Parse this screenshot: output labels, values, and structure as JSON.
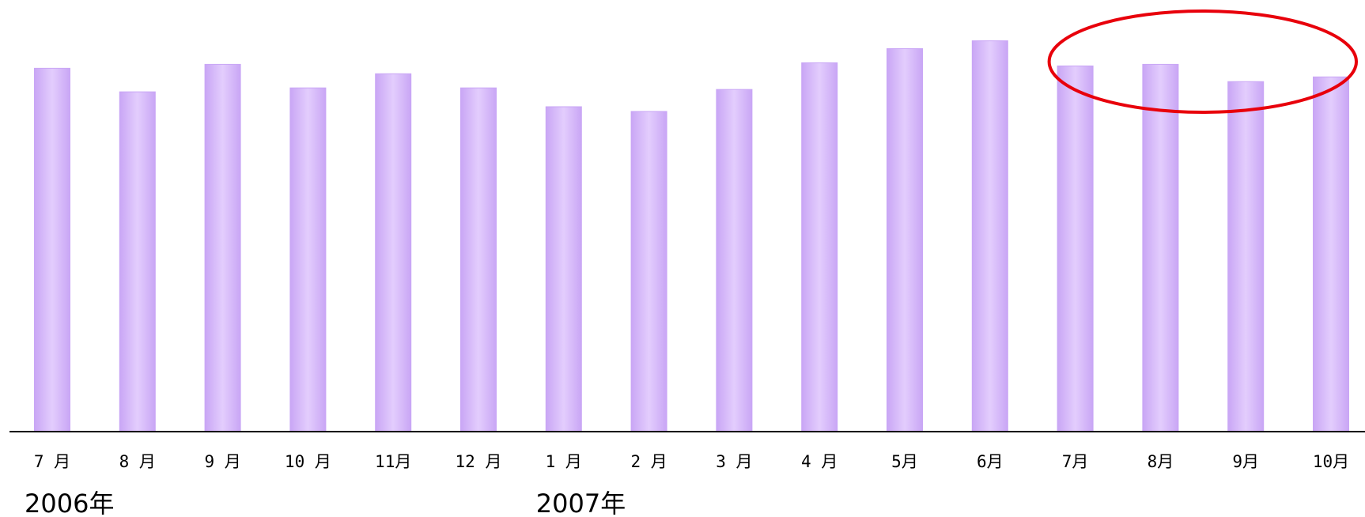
{
  "chart_data": {
    "type": "bar",
    "title": "",
    "xlabel": "",
    "ylabel": "",
    "categories": [
      "7 月",
      "8 月",
      "9 月",
      "10 月",
      "11月",
      "12 月",
      "1 月",
      "2 月",
      "3 月",
      "4 月",
      "5月",
      "6月",
      "7月",
      "8月",
      "9月",
      "10月"
    ],
    "values": [
      463,
      433,
      468,
      438,
      456,
      438,
      414,
      408,
      436,
      470,
      488,
      498,
      466,
      468,
      446,
      452
    ],
    "ylim": [
      0,
      550
    ],
    "year_labels": [
      {
        "text": "2006年",
        "category_index": 0
      },
      {
        "text": "2007年",
        "category_index": 6
      }
    ],
    "highlight": {
      "shape": "ellipse",
      "color": "#e8000b",
      "categories_from": 12,
      "categories_to": 15
    },
    "bar_colors": {
      "edge": "#c9a6f5",
      "center": "#e3cdfd"
    },
    "axis_color": "#000000",
    "grid": false,
    "legend": "none"
  }
}
